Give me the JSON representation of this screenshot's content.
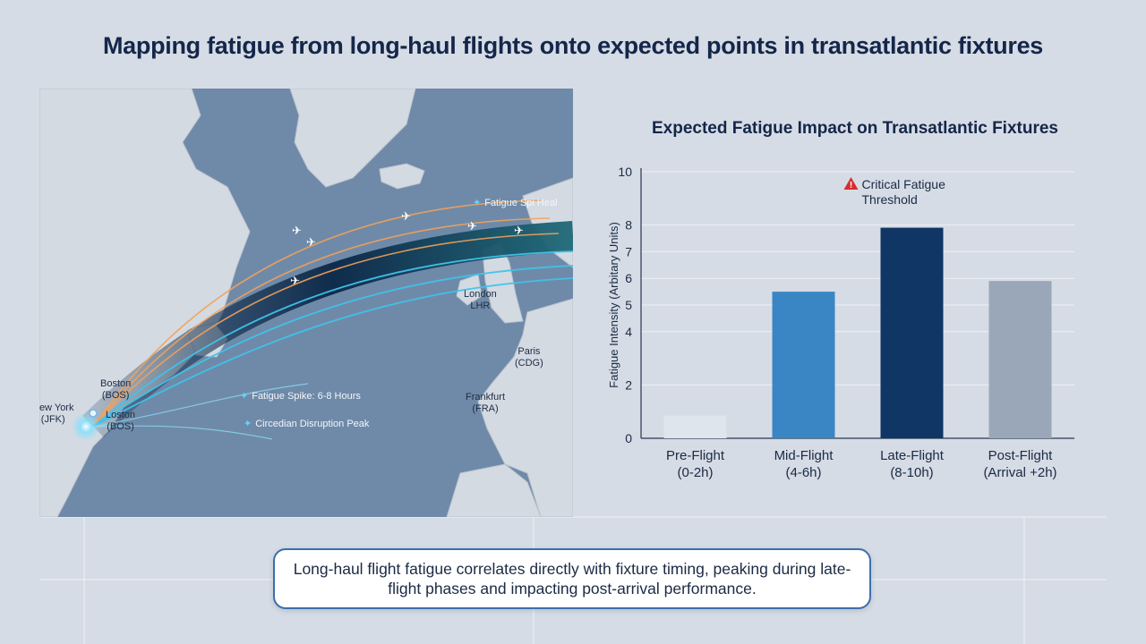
{
  "page": {
    "title": "Mapping fatigue from long-haul flights onto expected points in transatlantic fixtures",
    "summary": "Long-haul flight fatigue correlates directly with fixture timing, peaking during late-flight phases and impacting post-arrival performance."
  },
  "map": {
    "cities": [
      {
        "key": "jfk",
        "line1": "New York",
        "line2": "(JFK)"
      },
      {
        "key": "bos",
        "line1": "Boston",
        "line2": "(BOS)"
      },
      {
        "key": "bos2",
        "line1": "Loston",
        "line2": "(BOS)"
      },
      {
        "key": "lhr",
        "line1": "London",
        "line2": "LHR"
      },
      {
        "key": "cdg",
        "line1": "Paris",
        "line2": "(CDG)"
      },
      {
        "key": "fra",
        "line1": "Frankfurt",
        "line2": "(FRA)"
      }
    ],
    "annotations": [
      "Fatigue Spi Heal",
      "Fatigue Spike: 6-8 Hours",
      "Circedian Disruption Peak"
    ],
    "colors": {
      "ocean": "#6f8aa8",
      "land": "#d4dae2",
      "arc_warm": "#f2a25a",
      "arc_cool": "#3fc3ec",
      "arc_dark": "#0e2f52"
    }
  },
  "chart_data": {
    "type": "bar",
    "title": "Expected Fatigue Impact on Transatlantic Fixtures",
    "ylabel": "Fatigue Intensity (Arbitary Units)",
    "xlabel": "",
    "ylim": [
      0,
      10
    ],
    "yticks": [
      0,
      2,
      4,
      5,
      6,
      7,
      8,
      10
    ],
    "grid": true,
    "categories": [
      {
        "line1": "Pre-Flight",
        "line2": "(0-2h)"
      },
      {
        "line1": "Mid-Flight",
        "line2": "(4-6h)"
      },
      {
        "line1": "Late-Flight",
        "line2": "(8-10h)"
      },
      {
        "line1": "Post-Flight",
        "line2": "(Arrival +2h)"
      }
    ],
    "values": [
      0.85,
      5.5,
      7.9,
      5.9
    ],
    "colors": [
      "#dfe5ed",
      "#3a86c4",
      "#0f3664",
      "#9aa7b8"
    ],
    "annotation": {
      "line1": "Critical Fatigue",
      "line2": "Threshold",
      "icon": "warning-icon",
      "color": "#d42f2f"
    }
  }
}
